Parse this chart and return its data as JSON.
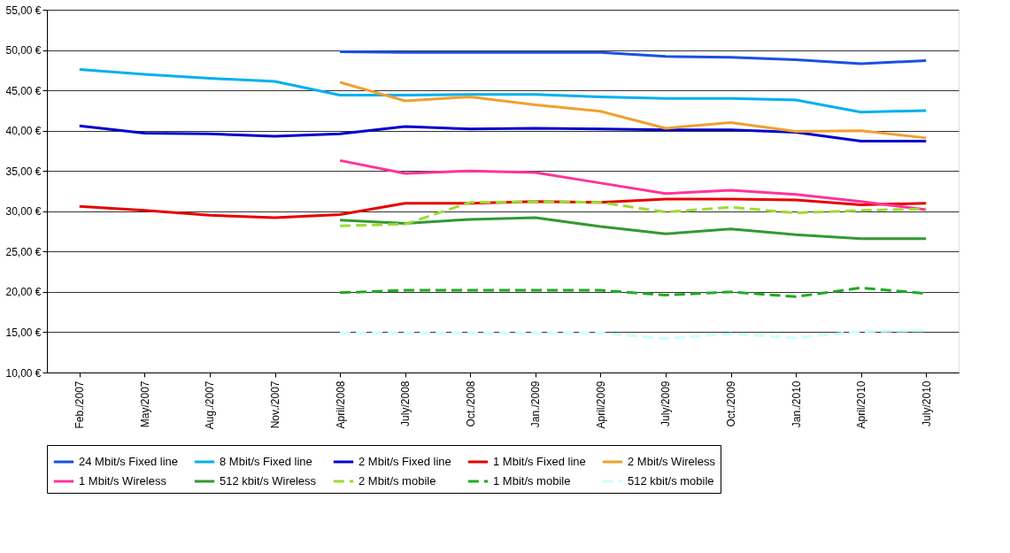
{
  "chart_data": {
    "type": "line",
    "categories": [
      "Feb./2007",
      "May/2007",
      "Aug./2007",
      "Nov./2007",
      "April/2008",
      "July/2008",
      "Oct./2008",
      "Jan./2009",
      "April/2009",
      "July/2009",
      "Oct./2009",
      "Jan./2010",
      "April/2010",
      "July/2010"
    ],
    "ylim": [
      10,
      55
    ],
    "yticks": [
      {
        "value": 10,
        "label": "10,00 €"
      },
      {
        "value": 15,
        "label": "15,00 €"
      },
      {
        "value": 20,
        "label": "20,00 €"
      },
      {
        "value": 25,
        "label": "25,00 €"
      },
      {
        "value": 30,
        "label": "30,00 €"
      },
      {
        "value": 35,
        "label": "35,00 €"
      },
      {
        "value": 40,
        "label": "40,00 €"
      },
      {
        "value": 45,
        "label": "45,00 €"
      },
      {
        "value": 50,
        "label": "50,00 €"
      },
      {
        "value": 55,
        "label": "55,00 €"
      }
    ],
    "grid": "y",
    "legend": "bottom",
    "marker": "none",
    "series": [
      {
        "name": "24 Mbit/s Fixed line",
        "color": "#1a4fe8",
        "line_style": "solid",
        "values": [
          null,
          null,
          null,
          null,
          49.8,
          49.7,
          49.7,
          49.7,
          49.7,
          49.2,
          49.1,
          48.8,
          48.3,
          48.7
        ]
      },
      {
        "name": "8 Mbit/s Fixed line",
        "color": "#00b0f0",
        "line_style": "solid",
        "values": [
          47.6,
          47.0,
          46.5,
          46.1,
          44.4,
          44.4,
          44.5,
          44.5,
          44.2,
          44.0,
          44.0,
          43.8,
          42.3,
          42.5
        ]
      },
      {
        "name": "2 Mbit/s Fixed line",
        "color": "#0000cc",
        "line_style": "solid",
        "values": [
          40.6,
          39.7,
          39.6,
          39.3,
          39.6,
          40.5,
          40.2,
          40.3,
          40.2,
          40.1,
          40.1,
          39.8,
          38.7,
          38.7
        ]
      },
      {
        "name": "1 Mbit/s Fixed line",
        "color": "#e60000",
        "line_style": "solid",
        "values": [
          30.6,
          30.1,
          29.5,
          29.2,
          29.6,
          31.0,
          31.0,
          31.2,
          31.1,
          31.5,
          31.5,
          31.4,
          30.8,
          31.0
        ]
      },
      {
        "name": "2 Mbit/s Wireless",
        "color": "#f0a030",
        "line_style": "solid",
        "values": [
          null,
          null,
          null,
          null,
          46.0,
          43.7,
          44.2,
          43.2,
          42.4,
          40.3,
          41.0,
          39.9,
          40.0,
          39.1
        ]
      },
      {
        "name": "1 Mbit/s Wireless",
        "color": "#ff3399",
        "line_style": "solid",
        "values": [
          null,
          null,
          null,
          null,
          36.3,
          34.7,
          35.0,
          34.8,
          33.5,
          32.2,
          32.6,
          32.1,
          31.2,
          30.2
        ]
      },
      {
        "name": "512 kbit/s Wireless",
        "color": "#339933",
        "line_style": "solid",
        "values": [
          null,
          null,
          null,
          null,
          28.9,
          28.5,
          29.0,
          29.2,
          28.1,
          27.2,
          27.8,
          27.1,
          26.6,
          26.6
        ]
      },
      {
        "name": "2 Mbit/s mobile",
        "color": "#99dd33",
        "line_style": "dashed",
        "values": [
          null,
          null,
          null,
          null,
          28.2,
          28.4,
          31.1,
          31.2,
          31.1,
          29.9,
          30.5,
          29.8,
          30.1,
          30.3
        ]
      },
      {
        "name": "1 Mbit/s mobile",
        "color": "#22aa22",
        "line_style": "dashed",
        "values": [
          null,
          null,
          null,
          null,
          19.9,
          20.2,
          20.2,
          20.2,
          20.2,
          19.6,
          20.0,
          19.4,
          20.5,
          19.8
        ]
      },
      {
        "name": "512 kbit/s mobile",
        "color": "#ccffff",
        "line_style": "dashed",
        "values": [
          null,
          null,
          null,
          null,
          14.9,
          14.9,
          14.9,
          14.9,
          14.9,
          14.2,
          14.8,
          14.3,
          15.1,
          15.2
        ]
      }
    ]
  }
}
